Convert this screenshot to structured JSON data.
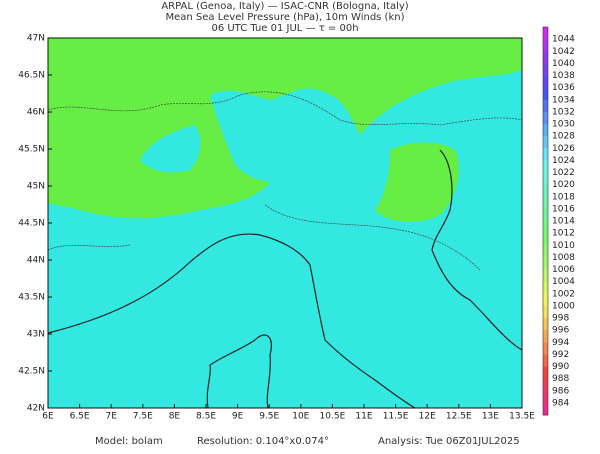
{
  "header": {
    "lines": [
      "ARPAL (Genoa, Italy)  —  ISAC-CNR (Bologna, Italy)",
      "Mean Sea Level Pressure (hPa), 10m Winds (kn)",
      "06 UTC Tue 01 JUL  —  τ = 00h"
    ]
  },
  "map": {
    "xticks": [
      "6E",
      "6.5E",
      "7E",
      "7.5E",
      "8E",
      "8.5E",
      "9E",
      "9.5E",
      "10E",
      "10.5E",
      "11E",
      "11.5E",
      "12E",
      "12.5E",
      "13E",
      "13.5E"
    ],
    "yticks": [
      "47N",
      "46.5N",
      "46N",
      "45.5N",
      "45N",
      "44.5N",
      "44N",
      "43.5N",
      "43N",
      "42.5N",
      "42N"
    ]
  },
  "colorbar": {
    "labels": [
      1044,
      1042,
      1040,
      1038,
      1036,
      1034,
      1032,
      1030,
      1028,
      1026,
      1024,
      1022,
      1020,
      1018,
      1016,
      1014,
      1012,
      1010,
      1008,
      1006,
      1004,
      1002,
      1000,
      998,
      996,
      994,
      992,
      990,
      988,
      986,
      984
    ]
  },
  "footer": {
    "model": "Model: bolam",
    "resolution": "Resolution: 0.104°x0.074°",
    "analysis": "Analysis: Tue 06Z01JUL2025"
  }
}
